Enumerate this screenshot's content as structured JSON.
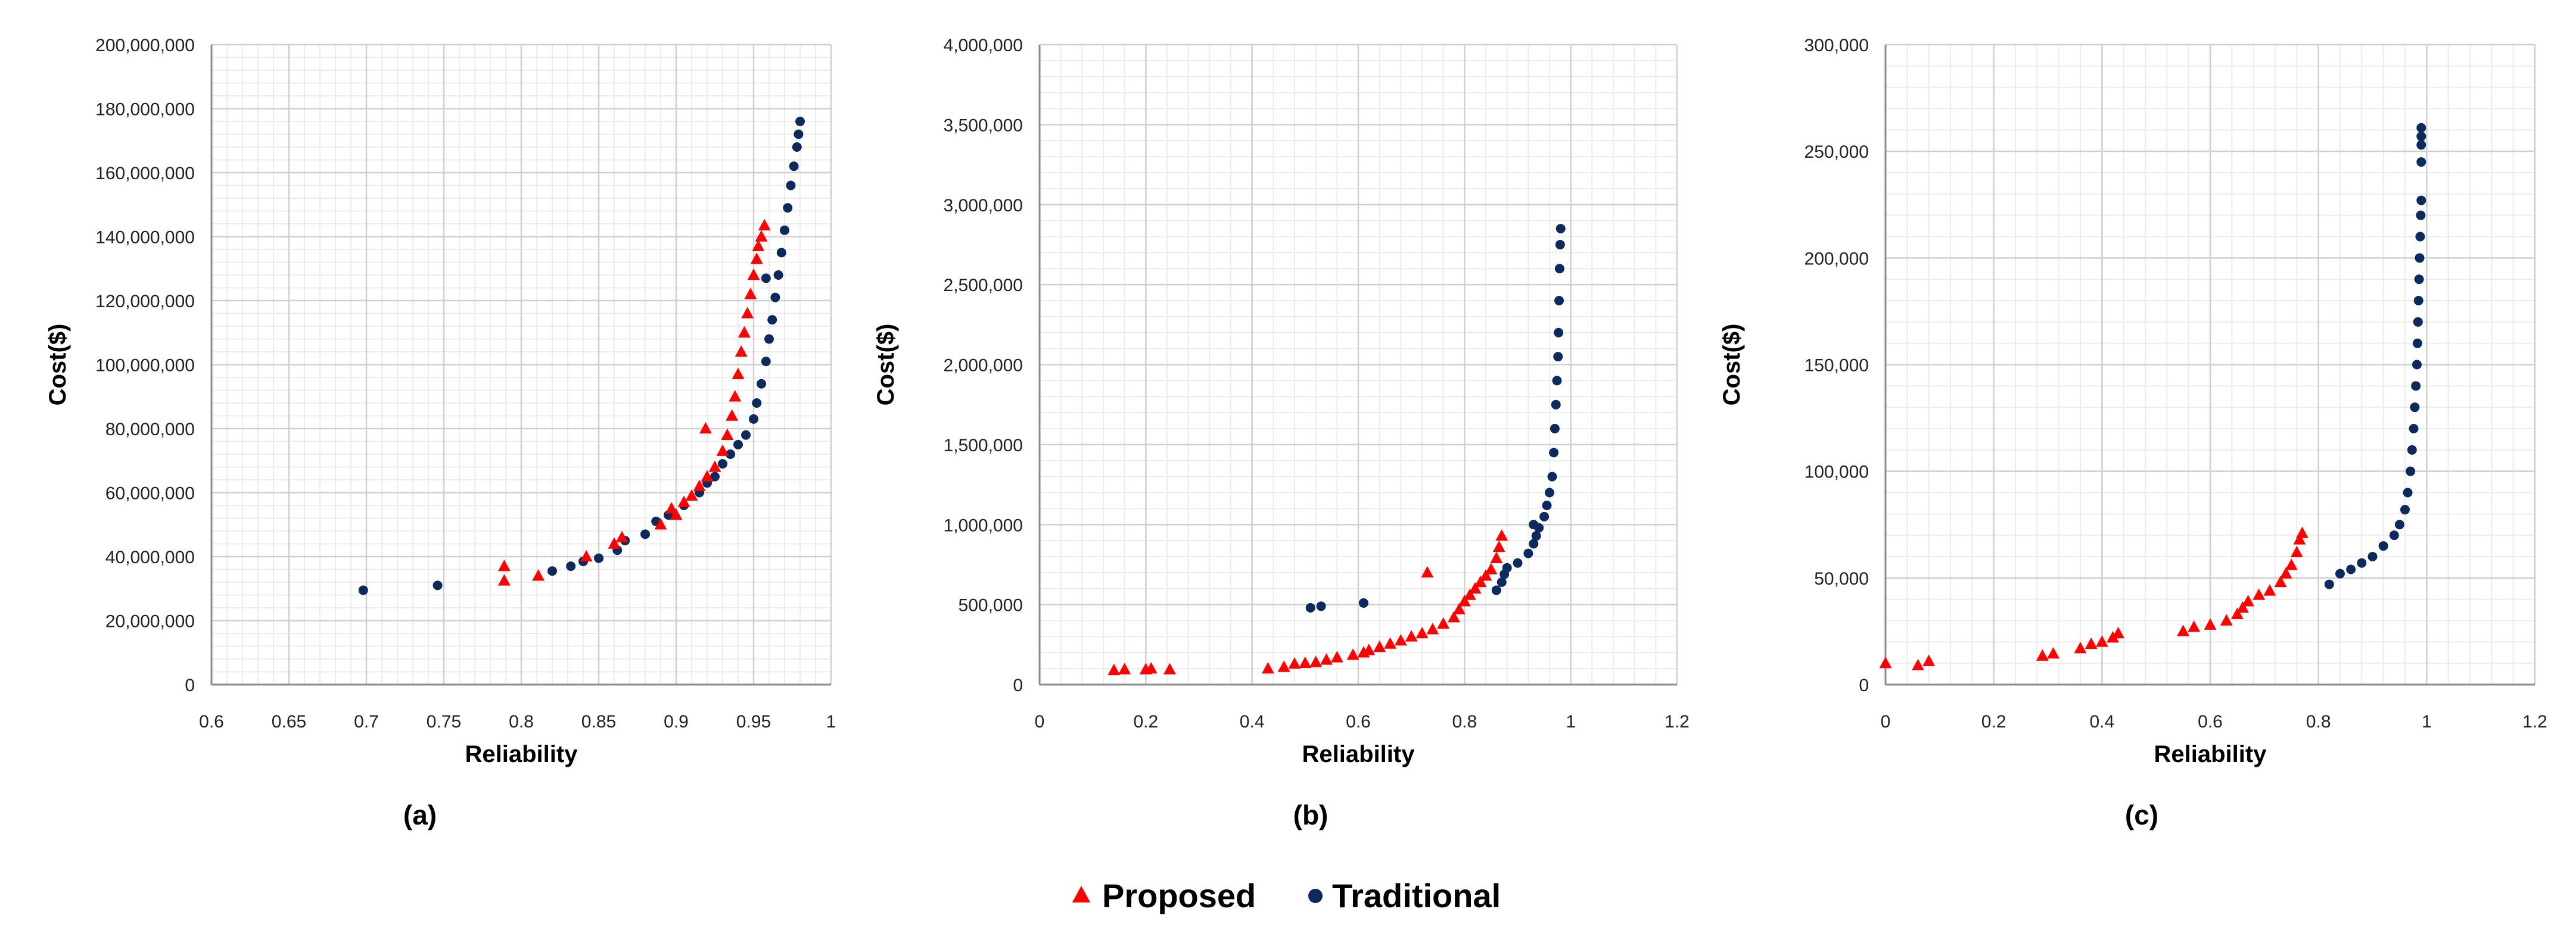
{
  "legend": {
    "proposed_label": "Proposed",
    "traditional_label": "Traditional"
  },
  "colors": {
    "proposed": "#ff0000",
    "traditional": "#0d2a5e",
    "grid_major": "#cfcfcf",
    "grid_minor": "#ececec"
  },
  "chart_data": [
    {
      "type": "scatter",
      "panel_label": "(a)",
      "xlabel": "Reliability",
      "ylabel": "Cost($)",
      "xlim": [
        0.6,
        1.0
      ],
      "ylim": [
        0,
        200000000
      ],
      "grid": true,
      "legend_position": "bottom-center",
      "x_ticks": [
        {
          "v": 0.6,
          "label": "0.6"
        },
        {
          "v": 0.65,
          "label": "0.65"
        },
        {
          "v": 0.7,
          "label": "0.7"
        },
        {
          "v": 0.75,
          "label": "0.75"
        },
        {
          "v": 0.8,
          "label": "0.8"
        },
        {
          "v": 0.85,
          "label": "0.85"
        },
        {
          "v": 0.9,
          "label": "0.9"
        },
        {
          "v": 0.95,
          "label": "0.95"
        },
        {
          "v": 1.0,
          "label": "1"
        }
      ],
      "y_ticks": [
        {
          "v": 0,
          "label": "0"
        },
        {
          "v": 20000000,
          "label": "20,000,000"
        },
        {
          "v": 40000000,
          "label": "40,000,000"
        },
        {
          "v": 60000000,
          "label": "60,000,000"
        },
        {
          "v": 80000000,
          "label": "80,000,000"
        },
        {
          "v": 100000000,
          "label": "100,000,000"
        },
        {
          "v": 120000000,
          "label": "120,000,000"
        },
        {
          "v": 140000000,
          "label": "140,000,000"
        },
        {
          "v": 160000000,
          "label": "160,000,000"
        },
        {
          "v": 180000000,
          "label": "180,000,000"
        },
        {
          "v": 200000000,
          "label": "200,000,000"
        }
      ],
      "series": [
        {
          "name": "Proposed",
          "marker": "triangle",
          "points": [
            [
              0.789,
              37000000
            ],
            [
              0.789,
              32500000
            ],
            [
              0.811,
              34000000
            ],
            [
              0.842,
              40000000
            ],
            [
              0.86,
              44000000
            ],
            [
              0.865,
              46000000
            ],
            [
              0.89,
              50000000
            ],
            [
              0.897,
              55000000
            ],
            [
              0.9,
              53000000
            ],
            [
              0.905,
              57000000
            ],
            [
              0.91,
              59000000
            ],
            [
              0.915,
              62000000
            ],
            [
              0.92,
              65000000
            ],
            [
              0.919,
              80000000
            ],
            [
              0.925,
              68000000
            ],
            [
              0.93,
              73000000
            ],
            [
              0.933,
              78000000
            ],
            [
              0.936,
              84000000
            ],
            [
              0.938,
              90000000
            ],
            [
              0.94,
              97000000
            ],
            [
              0.942,
              104000000
            ],
            [
              0.944,
              110000000
            ],
            [
              0.946,
              116000000
            ],
            [
              0.948,
              122000000
            ],
            [
              0.95,
              128000000
            ],
            [
              0.952,
              133000000
            ],
            [
              0.953,
              137000000
            ],
            [
              0.955,
              140000000
            ],
            [
              0.957,
              143500000
            ]
          ]
        },
        {
          "name": "Traditional",
          "marker": "circle",
          "points": [
            [
              0.698,
              29500000
            ],
            [
              0.746,
              31000000
            ],
            [
              0.82,
              35500000
            ],
            [
              0.832,
              37000000
            ],
            [
              0.84,
              38500000
            ],
            [
              0.85,
              39500000
            ],
            [
              0.862,
              42000000
            ],
            [
              0.867,
              45000000
            ],
            [
              0.88,
              47000000
            ],
            [
              0.887,
              51000000
            ],
            [
              0.895,
              53000000
            ],
            [
              0.905,
              56000000
            ],
            [
              0.915,
              60000000
            ],
            [
              0.92,
              63000000
            ],
            [
              0.925,
              65000000
            ],
            [
              0.93,
              69000000
            ],
            [
              0.935,
              72000000
            ],
            [
              0.94,
              75000000
            ],
            [
              0.945,
              78000000
            ],
            [
              0.95,
              83000000
            ],
            [
              0.952,
              88000000
            ],
            [
              0.955,
              94000000
            ],
            [
              0.958,
              101000000
            ],
            [
              0.96,
              108000000
            ],
            [
              0.958,
              127000000
            ],
            [
              0.962,
              114000000
            ],
            [
              0.964,
              121000000
            ],
            [
              0.966,
              128000000
            ],
            [
              0.968,
              135000000
            ],
            [
              0.97,
              142000000
            ],
            [
              0.972,
              149000000
            ],
            [
              0.974,
              156000000
            ],
            [
              0.976,
              162000000
            ],
            [
              0.978,
              168000000
            ],
            [
              0.979,
              172000000
            ],
            [
              0.98,
              176000000
            ]
          ]
        }
      ]
    },
    {
      "type": "scatter",
      "panel_label": "(b)",
      "xlabel": "Reliability",
      "ylabel": "Cost($)",
      "xlim": [
        0,
        1.2
      ],
      "ylim": [
        0,
        4000000
      ],
      "grid": true,
      "legend_position": "bottom-center",
      "x_ticks": [
        {
          "v": 0,
          "label": "0"
        },
        {
          "v": 0.2,
          "label": "0.2"
        },
        {
          "v": 0.4,
          "label": "0.4"
        },
        {
          "v": 0.6,
          "label": "0.6"
        },
        {
          "v": 0.8,
          "label": "0.8"
        },
        {
          "v": 1.0,
          "label": "1"
        },
        {
          "v": 1.2,
          "label": "1.2"
        }
      ],
      "y_ticks": [
        {
          "v": 0,
          "label": "0"
        },
        {
          "v": 500000,
          "label": "500,000"
        },
        {
          "v": 1000000,
          "label": "1,000,000"
        },
        {
          "v": 1500000,
          "label": "1,500,000"
        },
        {
          "v": 2000000,
          "label": "2,000,000"
        },
        {
          "v": 2500000,
          "label": "2,500,000"
        },
        {
          "v": 3000000,
          "label": "3,000,000"
        },
        {
          "v": 3500000,
          "label": "3,500,000"
        },
        {
          "v": 4000000,
          "label": "4,000,000"
        }
      ],
      "series": [
        {
          "name": "Proposed",
          "marker": "triangle",
          "points": [
            [
              0.14,
              90000
            ],
            [
              0.16,
              95000
            ],
            [
              0.2,
              95000
            ],
            [
              0.21,
              100000
            ],
            [
              0.245,
              95000
            ],
            [
              0.43,
              100000
            ],
            [
              0.46,
              110000
            ],
            [
              0.48,
              130000
            ],
            [
              0.5,
              135000
            ],
            [
              0.52,
              140000
            ],
            [
              0.54,
              155000
            ],
            [
              0.56,
              170000
            ],
            [
              0.59,
              185000
            ],
            [
              0.61,
              200000
            ],
            [
              0.62,
              215000
            ],
            [
              0.64,
              235000
            ],
            [
              0.66,
              255000
            ],
            [
              0.68,
              275000
            ],
            [
              0.7,
              300000
            ],
            [
              0.72,
              320000
            ],
            [
              0.73,
              700000
            ],
            [
              0.74,
              345000
            ],
            [
              0.76,
              380000
            ],
            [
              0.78,
              420000
            ],
            [
              0.79,
              470000
            ],
            [
              0.8,
              520000
            ],
            [
              0.81,
              560000
            ],
            [
              0.82,
              600000
            ],
            [
              0.83,
              640000
            ],
            [
              0.84,
              680000
            ],
            [
              0.85,
              720000
            ],
            [
              0.86,
              790000
            ],
            [
              0.865,
              860000
            ],
            [
              0.87,
              930000
            ]
          ]
        },
        {
          "name": "Traditional",
          "marker": "circle",
          "points": [
            [
              0.51,
              480000
            ],
            [
              0.53,
              490000
            ],
            [
              0.61,
              510000
            ],
            [
              0.86,
              590000
            ],
            [
              0.87,
              640000
            ],
            [
              0.875,
              690000
            ],
            [
              0.88,
              730000
            ],
            [
              0.9,
              760000
            ],
            [
              0.92,
              820000
            ],
            [
              0.93,
              880000
            ],
            [
              0.935,
              930000
            ],
            [
              0.94,
              980000
            ],
            [
              0.95,
              1050000
            ],
            [
              0.955,
              1120000
            ],
            [
              0.96,
              1200000
            ],
            [
              0.965,
              1300000
            ],
            [
              0.968,
              1450000
            ],
            [
              0.97,
              1600000
            ],
            [
              0.972,
              1750000
            ],
            [
              0.974,
              1900000
            ],
            [
              0.976,
              2050000
            ],
            [
              0.977,
              2200000
            ],
            [
              0.978,
              2400000
            ],
            [
              0.979,
              2600000
            ],
            [
              0.98,
              2750000
            ],
            [
              0.981,
              2850000
            ],
            [
              0.93,
              1000000
            ]
          ]
        }
      ]
    },
    {
      "type": "scatter",
      "panel_label": "(c)",
      "xlabel": "Reliability",
      "ylabel": "Cost($)",
      "xlim": [
        0,
        1.2
      ],
      "ylim": [
        0,
        300000
      ],
      "grid": true,
      "legend_position": "bottom-center",
      "x_ticks": [
        {
          "v": 0,
          "label": "0"
        },
        {
          "v": 0.2,
          "label": "0.2"
        },
        {
          "v": 0.4,
          "label": "0.4"
        },
        {
          "v": 0.6,
          "label": "0.6"
        },
        {
          "v": 0.8,
          "label": "0.8"
        },
        {
          "v": 1.0,
          "label": "1"
        },
        {
          "v": 1.2,
          "label": "1.2"
        }
      ],
      "y_ticks": [
        {
          "v": 0,
          "label": "0"
        },
        {
          "v": 50000,
          "label": "50,000"
        },
        {
          "v": 100000,
          "label": "100,000"
        },
        {
          "v": 150000,
          "label": "150,000"
        },
        {
          "v": 200000,
          "label": "200,000"
        },
        {
          "v": 250000,
          "label": "250,000"
        },
        {
          "v": 300000,
          "label": "300,000"
        }
      ],
      "series": [
        {
          "name": "Proposed",
          "marker": "triangle",
          "points": [
            [
              0.0,
              10000
            ],
            [
              0.06,
              9000
            ],
            [
              0.08,
              11000
            ],
            [
              0.29,
              13500
            ],
            [
              0.31,
              14500
            ],
            [
              0.36,
              17000
            ],
            [
              0.38,
              19000
            ],
            [
              0.4,
              20000
            ],
            [
              0.42,
              22000
            ],
            [
              0.43,
              24000
            ],
            [
              0.55,
              25000
            ],
            [
              0.57,
              27000
            ],
            [
              0.6,
              28000
            ],
            [
              0.63,
              30000
            ],
            [
              0.65,
              33000
            ],
            [
              0.66,
              36000
            ],
            [
              0.67,
              39000
            ],
            [
              0.69,
              42000
            ],
            [
              0.71,
              44000
            ],
            [
              0.73,
              48000
            ],
            [
              0.74,
              52000
            ],
            [
              0.75,
              56000
            ],
            [
              0.76,
              62000
            ],
            [
              0.765,
              68000
            ],
            [
              0.77,
              71000
            ]
          ]
        },
        {
          "name": "Traditional",
          "marker": "circle",
          "points": [
            [
              0.82,
              47000
            ],
            [
              0.84,
              52000
            ],
            [
              0.86,
              54000
            ],
            [
              0.88,
              57000
            ],
            [
              0.9,
              60000
            ],
            [
              0.92,
              65000
            ],
            [
              0.94,
              70000
            ],
            [
              0.95,
              75000
            ],
            [
              0.96,
              82000
            ],
            [
              0.965,
              90000
            ],
            [
              0.97,
              100000
            ],
            [
              0.973,
              110000
            ],
            [
              0.976,
              120000
            ],
            [
              0.978,
              130000
            ],
            [
              0.98,
              140000
            ],
            [
              0.982,
              150000
            ],
            [
              0.983,
              160000
            ],
            [
              0.984,
              170000
            ],
            [
              0.985,
              180000
            ],
            [
              0.986,
              190000
            ],
            [
              0.987,
              200000
            ],
            [
              0.988,
              210000
            ],
            [
              0.989,
              220000
            ],
            [
              0.99,
              227000
            ],
            [
              0.99,
              253000
            ],
            [
              0.99,
              257000
            ],
            [
              0.99,
              261000
            ],
            [
              0.99,
              245000
            ]
          ]
        }
      ]
    }
  ]
}
